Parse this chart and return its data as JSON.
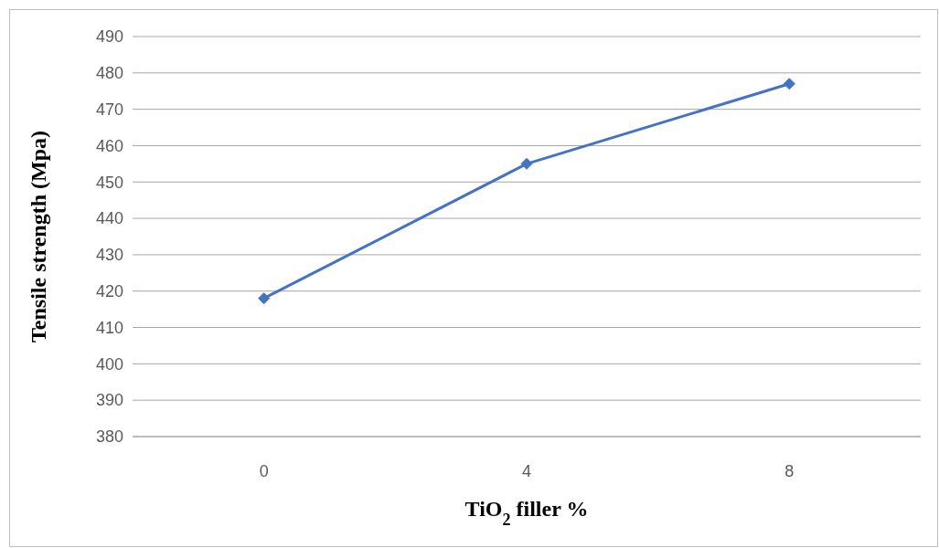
{
  "chart_data": {
    "type": "line",
    "categories": [
      "0",
      "4",
      "8"
    ],
    "series": [
      {
        "color": "#4472c4",
        "values": [
          418,
          455,
          477
        ]
      }
    ],
    "ylim": [
      380,
      490
    ],
    "yticks": [
      380,
      390,
      400,
      410,
      420,
      430,
      440,
      450,
      460,
      470,
      480,
      490
    ],
    "xlabel": "TiO$_{2}$ filler %",
    "ylabel": "Tensile strength (Mpa)",
    "grid": "y",
    "marker": "diamond",
    "line_style": "solid"
  }
}
